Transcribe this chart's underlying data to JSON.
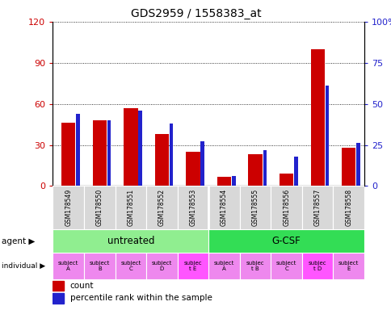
{
  "title": "GDS2959 / 1558383_at",
  "samples": [
    "GSM178549",
    "GSM178550",
    "GSM178551",
    "GSM178552",
    "GSM178553",
    "GSM178554",
    "GSM178555",
    "GSM178556",
    "GSM178557",
    "GSM178558"
  ],
  "counts": [
    46,
    48,
    57,
    38,
    25,
    7,
    23,
    9,
    100,
    28
  ],
  "percentile_ranks": [
    44,
    40,
    46,
    38,
    27,
    6,
    22,
    18,
    61,
    26
  ],
  "ylim_left": [
    0,
    120
  ],
  "ylim_right": [
    0,
    100
  ],
  "yticks_left": [
    0,
    30,
    60,
    90,
    120
  ],
  "yticks_right": [
    0,
    25,
    50,
    75,
    100
  ],
  "ytick_labels_left": [
    "0",
    "30",
    "60",
    "90",
    "120"
  ],
  "ytick_labels_right": [
    "0",
    "25",
    "50",
    "75",
    "100%"
  ],
  "agent_groups": [
    {
      "label": "untreated",
      "start": 0,
      "end": 5,
      "color": "#90ee90"
    },
    {
      "label": "G-CSF",
      "start": 5,
      "end": 10,
      "color": "#33dd55"
    }
  ],
  "individuals": [
    {
      "label": "subject\nA",
      "col": 0,
      "color": "#ee88ee"
    },
    {
      "label": "subject\nB",
      "col": 1,
      "color": "#ee88ee"
    },
    {
      "label": "subject\nC",
      "col": 2,
      "color": "#ee88ee"
    },
    {
      "label": "subject\nD",
      "col": 3,
      "color": "#ee88ee"
    },
    {
      "label": "subjec\nt E",
      "col": 4,
      "color": "#ff55ff"
    },
    {
      "label": "subject\nA",
      "col": 5,
      "color": "#ee88ee"
    },
    {
      "label": "subjec\nt B",
      "col": 6,
      "color": "#ee88ee"
    },
    {
      "label": "subject\nC",
      "col": 7,
      "color": "#ee88ee"
    },
    {
      "label": "subjec\nt D",
      "col": 8,
      "color": "#ff55ff"
    },
    {
      "label": "subject\nE",
      "col": 9,
      "color": "#ee88ee"
    }
  ],
  "bar_color_red": "#cc0000",
  "bar_color_blue": "#2222cc",
  "axis_label_color_left": "#cc0000",
  "axis_label_color_right": "#2222cc",
  "red_bar_width": 0.45,
  "blue_bar_width": 0.12,
  "legend_count_color": "#cc0000",
  "legend_percentile_color": "#2222cc"
}
